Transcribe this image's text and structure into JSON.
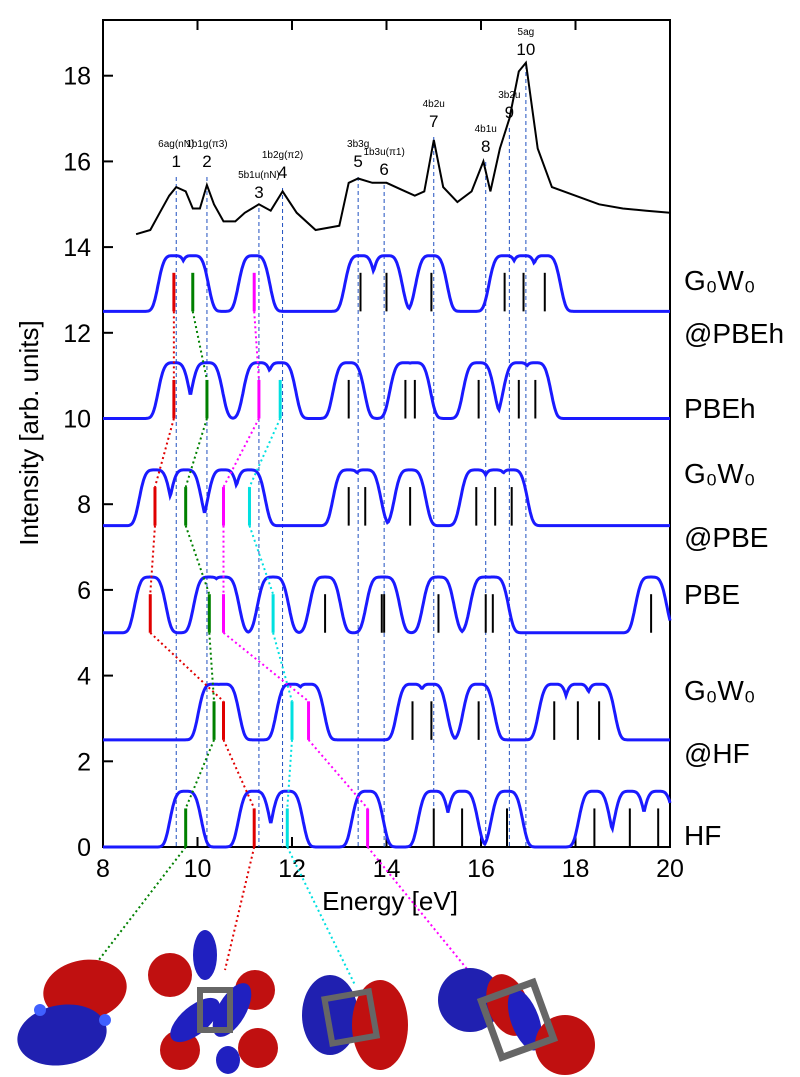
{
  "chart_data": {
    "type": "line",
    "x_label": "Energy [eV]",
    "y_label": "Intensity [arb. units]",
    "xlim": [
      8,
      20
    ],
    "xticks": [
      8,
      10,
      12,
      14,
      16,
      18,
      20
    ],
    "ylim": [
      0,
      19.3
    ],
    "yticks": [
      0,
      2,
      4,
      6,
      8,
      10,
      12,
      14,
      16,
      18
    ],
    "curve_color": "#1a1aff",
    "broadening": 0.36,
    "peak_height": 1.3,
    "stick_height": 0.9,
    "experiment": {
      "color": "#000000",
      "x": [
        8.7,
        9.0,
        9.2,
        9.4,
        9.55,
        9.75,
        9.9,
        10.05,
        10.2,
        10.35,
        10.55,
        10.8,
        11.0,
        11.3,
        11.55,
        11.8,
        12.1,
        12.5,
        13.0,
        13.2,
        13.4,
        13.7,
        14.0,
        14.3,
        14.6,
        14.8,
        15.0,
        15.2,
        15.5,
        15.8,
        16.05,
        16.2,
        16.4,
        16.6,
        16.8,
        16.95,
        17.2,
        17.5,
        18.0,
        18.5,
        19.0,
        19.5,
        20.0
      ],
      "values": [
        14.3,
        14.4,
        14.8,
        15.2,
        15.4,
        15.3,
        14.9,
        14.9,
        15.45,
        15.0,
        14.6,
        14.6,
        14.8,
        15.0,
        14.85,
        15.3,
        14.8,
        14.4,
        14.5,
        15.5,
        15.6,
        15.5,
        15.5,
        15.35,
        15.2,
        15.3,
        16.5,
        15.4,
        15.05,
        15.3,
        16.0,
        15.3,
        16.3,
        17.0,
        18.1,
        18.3,
        16.3,
        15.4,
        15.2,
        15.0,
        14.9,
        14.85,
        14.8
      ],
      "peaks": [
        {
          "label": "1",
          "state": "6ag(nN)",
          "energy": 9.55
        },
        {
          "label": "2",
          "state": "1b1g(π3)",
          "energy": 10.2
        },
        {
          "label": "3",
          "state": "5b1u(nN)",
          "energy": 11.3
        },
        {
          "label": "4",
          "state": "1b2g(π2)",
          "energy": 11.8
        },
        {
          "label": "5",
          "state": "3b3g",
          "energy": 13.4
        },
        {
          "label": "6",
          "state": "1b3u(π1)",
          "energy": 13.95
        },
        {
          "label": "7",
          "state": "4b2u",
          "energy": 15.0
        },
        {
          "label": "8",
          "state": "4b1u",
          "energy": 16.1
        },
        {
          "label": "9",
          "state": "3b2u",
          "energy": 16.6
        },
        {
          "label": "10",
          "state": "5ag",
          "energy": 16.95
        }
      ]
    },
    "series": [
      {
        "name_lines": [
          "G₀W₀",
          "@PBEh"
        ],
        "baseline": 12.5,
        "sticks": [
          9.5,
          9.9,
          11.2,
          13.45,
          14.0,
          14.95,
          16.5,
          16.9,
          17.35
        ],
        "stick_colors": [
          "#e00000",
          "#008000",
          "#ff00ff",
          "#000000",
          "#000000",
          "#000000",
          "#000000",
          "#000000",
          "#000000"
        ]
      },
      {
        "name_lines": [
          "PBEh"
        ],
        "baseline": 10,
        "sticks": [
          9.5,
          10.2,
          11.3,
          11.75,
          13.2,
          14.4,
          14.6,
          15.95,
          16.8,
          17.15
        ],
        "stick_colors": [
          "#e00000",
          "#008000",
          "#ff00ff",
          "#00e0e0",
          "#000000",
          "#000000",
          "#000000",
          "#000000",
          "#000000",
          "#000000"
        ]
      },
      {
        "name_lines": [
          "G₀W₀",
          "@PBE"
        ],
        "baseline": 7.5,
        "sticks": [
          9.1,
          9.75,
          10.55,
          11.1,
          13.2,
          13.55,
          14.5,
          15.9,
          16.3,
          16.65
        ],
        "stick_colors": [
          "#e00000",
          "#008000",
          "#ff00ff",
          "#00e0e0",
          "#000000",
          "#000000",
          "#000000",
          "#000000",
          "#000000",
          "#000000"
        ]
      },
      {
        "name_lines": [
          "PBE"
        ],
        "baseline": 5,
        "sticks": [
          9.0,
          10.25,
          10.55,
          11.6,
          12.7,
          13.9,
          13.95,
          15.1,
          16.1,
          16.25,
          19.6
        ],
        "stick_colors": [
          "#e00000",
          "#008000",
          "#ff00ff",
          "#00e0e0",
          "#000000",
          "#000000",
          "#000000",
          "#000000",
          "#000000",
          "#000000",
          "#000000"
        ]
      },
      {
        "name_lines": [
          "G₀W₀",
          "@HF"
        ],
        "baseline": 2.5,
        "sticks": [
          10.35,
          10.55,
          12.0,
          12.35,
          14.55,
          14.95,
          15.95,
          17.55,
          18.05,
          18.5
        ],
        "stick_colors": [
          "#008000",
          "#e00000",
          "#00e0e0",
          "#ff00ff",
          "#000000",
          "#000000",
          "#000000",
          "#000000",
          "#000000",
          "#000000"
        ]
      },
      {
        "name_lines": [
          "HF"
        ],
        "baseline": 0,
        "sticks": [
          9.75,
          11.2,
          11.9,
          13.6,
          15.0,
          15.6,
          16.55,
          18.4,
          19.15,
          19.75
        ],
        "stick_colors": [
          "#008000",
          "#e00000",
          "#00e0e0",
          "#ff00ff",
          "#000000",
          "#000000",
          "#000000",
          "#000000",
          "#000000",
          "#000000"
        ]
      }
    ]
  }
}
